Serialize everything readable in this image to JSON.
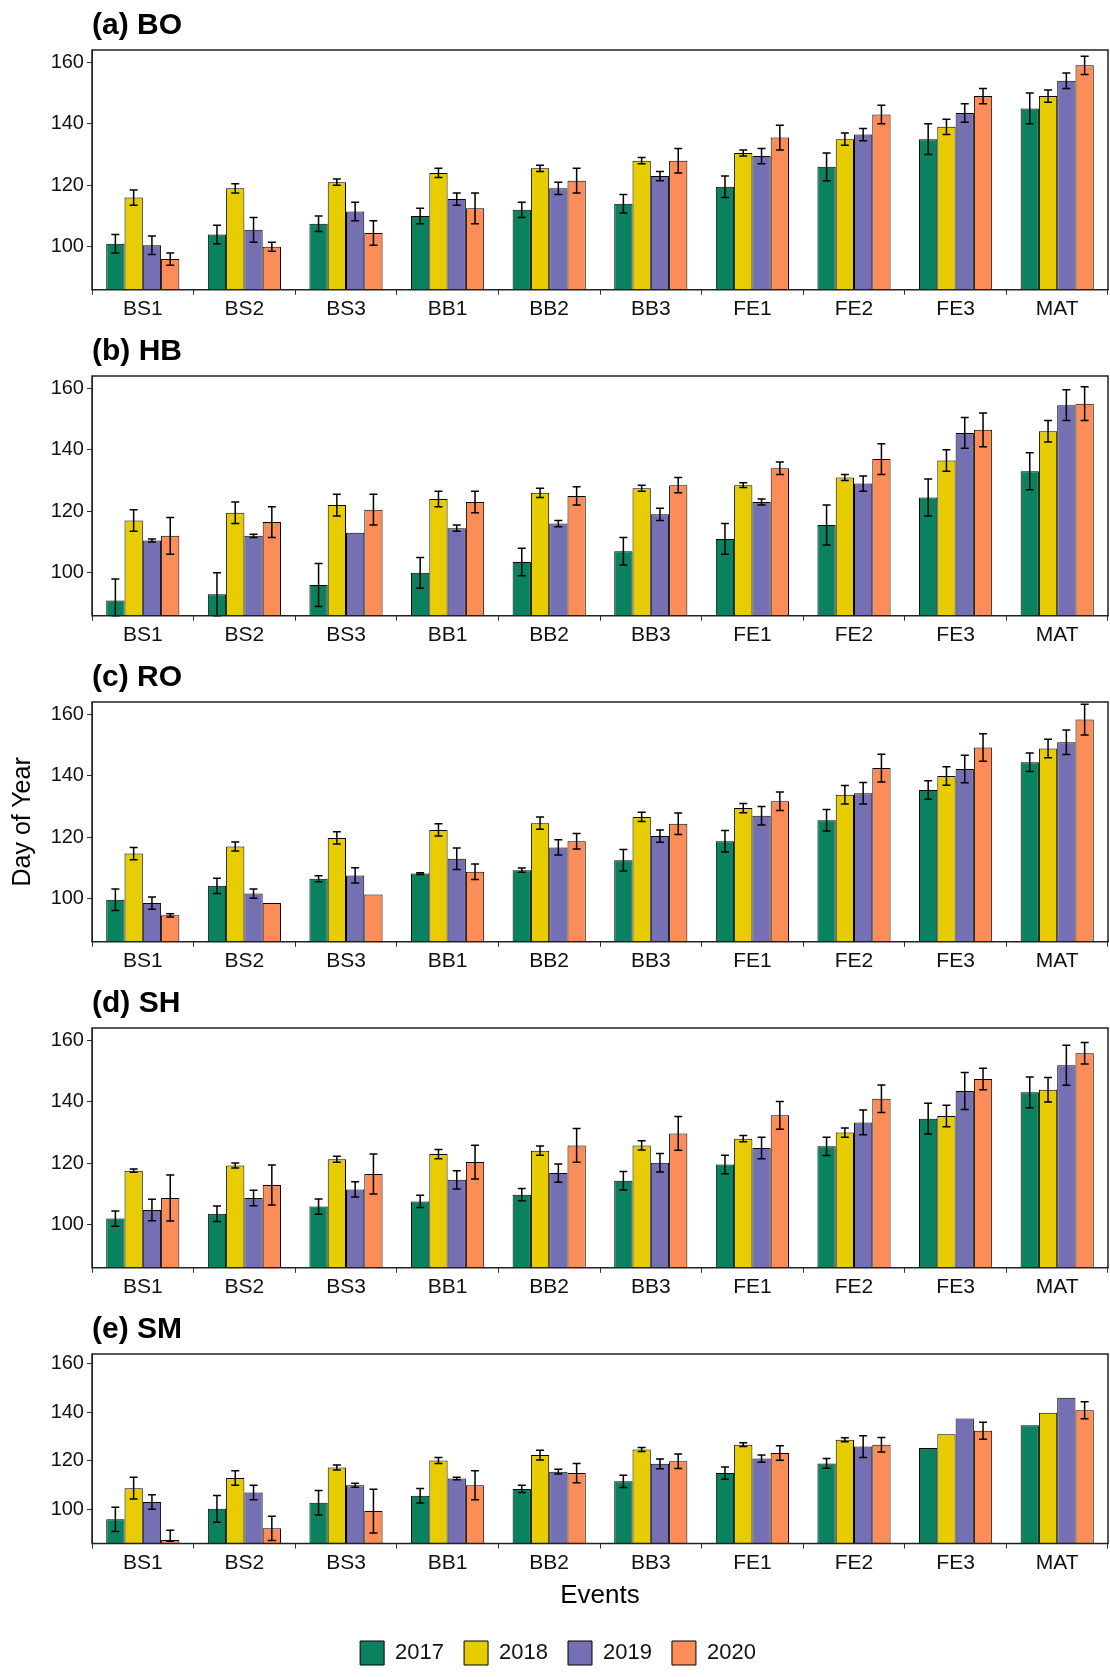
{
  "chart_data": [
    {
      "type": "bar",
      "title": "(a) BO",
      "categories": [
        "BS1",
        "BS2",
        "BS3",
        "BB1",
        "BB2",
        "BB3",
        "FE1",
        "FE2",
        "FE3",
        "MAT"
      ],
      "ylim": [
        86,
        164
      ],
      "yticks": [
        100,
        120,
        140,
        160
      ],
      "series": [
        {
          "color": "#0a8260",
          "values": [
            101,
            104,
            107.5,
            110,
            112,
            114,
            119.5,
            126,
            135,
            145
          ],
          "errors": [
            3,
            3,
            2.5,
            2.5,
            2.5,
            3,
            3.5,
            4.5,
            5,
            5
          ]
        },
        {
          "color": "#e6cc00",
          "values": [
            116,
            119,
            121,
            124,
            125.5,
            128,
            130.5,
            135,
            139,
            149
          ],
          "errors": [
            2.5,
            1.5,
            1,
            1.5,
            1,
            1,
            1,
            2,
            2.5,
            2
          ]
        },
        {
          "color": "#7570b3",
          "values": [
            100.5,
            105.5,
            111.5,
            115.5,
            119,
            123,
            129.5,
            136.5,
            143.5,
            154
          ],
          "errors": [
            3,
            4,
            3,
            2,
            2,
            1.5,
            2.5,
            2,
            3,
            2.5
          ]
        },
        {
          "color": "#fc8d59",
          "values": [
            96,
            100,
            104.5,
            112.5,
            121.5,
            128,
            135.5,
            143,
            149,
            159
          ],
          "errors": [
            2,
            1.5,
            4,
            5,
            4,
            4,
            4,
            3,
            2.5,
            3
          ]
        }
      ]
    },
    {
      "type": "bar",
      "title": "(b) HB",
      "categories": [
        "BS1",
        "BS2",
        "BS3",
        "BB1",
        "BB2",
        "BB3",
        "FE1",
        "FE2",
        "FE3",
        "MAT"
      ],
      "ylim": [
        86,
        164
      ],
      "yticks": [
        100,
        120,
        140,
        160
      ],
      "series": [
        {
          "color": "#0a8260",
          "values": [
            91,
            93,
            96,
            100,
            103.5,
            107,
            111,
            115.5,
            124.5,
            133
          ],
          "errors": [
            [
              86,
              98
            ],
            7,
            7,
            5,
            4.5,
            4.5,
            5,
            6.5,
            6,
            6
          ]
        },
        {
          "color": "#e6cc00",
          "values": [
            117,
            119.5,
            122,
            124,
            126,
            127.5,
            128.5,
            131,
            136.5,
            146
          ],
          "errors": [
            3.5,
            3.5,
            3.5,
            2.5,
            1.5,
            1,
            0.8,
            1,
            3.5,
            3.5
          ]
        },
        {
          "color": "#7570b3",
          "values": [
            110.5,
            112,
            113,
            114.5,
            116,
            119,
            123,
            129,
            145.5,
            154.5
          ],
          "errors": [
            0.5,
            0.5,
            null,
            1,
            1,
            2,
            1,
            2.5,
            5,
            5
          ]
        },
        {
          "color": "#fc8d59",
          "values": [
            112,
            116.5,
            120.5,
            123,
            125,
            128.5,
            134,
            137,
            146.5,
            155
          ],
          "errors": [
            6,
            5,
            5,
            3.5,
            3,
            2.5,
            2,
            5,
            5.5,
            5.5
          ]
        }
      ]
    },
    {
      "type": "bar",
      "title": "(c) RO",
      "ylabel": "Day of Year",
      "categories": [
        "BS1",
        "BS2",
        "BS3",
        "BB1",
        "BB2",
        "BB3",
        "FE1",
        "FE2",
        "FE3",
        "MAT"
      ],
      "ylim": [
        86,
        164
      ],
      "yticks": [
        100,
        120,
        140,
        160
      ],
      "series": [
        {
          "color": "#0a8260",
          "values": [
            99.7,
            104.2,
            106.5,
            108.2,
            109.3,
            112.5,
            118.7,
            125.5,
            135.4,
            144.4
          ],
          "errors": [
            3.5,
            2.5,
            1,
            0.3,
            0.7,
            3.5,
            3.5,
            3.5,
            3,
            3
          ]
        },
        {
          "color": "#e6cc00",
          "values": [
            114.7,
            117,
            119.8,
            122.4,
            124.6,
            126.6,
            129.5,
            133.8,
            139.9,
            148.9
          ],
          "errors": [
            2,
            1.5,
            2,
            2,
            2,
            1.5,
            1.5,
            3,
            3,
            3
          ]
        },
        {
          "color": "#7570b3",
          "values": [
            98.6,
            101.7,
            107.6,
            113,
            116.7,
            120.4,
            127,
            134.3,
            142.2,
            150.9
          ],
          "errors": [
            2,
            1.5,
            2.5,
            3.5,
            2.5,
            2,
            3,
            3.5,
            4.5,
            4
          ]
        },
        {
          "color": "#fc8d59",
          "values": [
            94.6,
            98.6,
            101.4,
            108.8,
            118.7,
            124.4,
            131.7,
            142.5,
            149.2,
            158.3
          ],
          "errors": [
            0.5,
            null,
            null,
            2.5,
            2.5,
            3.5,
            3,
            4.5,
            4.5,
            5
          ]
        }
      ]
    },
    {
      "type": "bar",
      "title": "(d) SH",
      "categories": [
        "BS1",
        "BS2",
        "BS3",
        "BB1",
        "BB2",
        "BB3",
        "FE1",
        "FE2",
        "FE3",
        "MAT"
      ],
      "ylim": [
        86,
        164
      ],
      "yticks": [
        100,
        120,
        140,
        160
      ],
      "series": [
        {
          "color": "#0a8260",
          "values": [
            102,
            103.6,
            105.9,
            107.6,
            109.8,
            114.3,
            119.6,
            125.5,
            134.5,
            143.1
          ],
          "errors": [
            2.5,
            2.5,
            2.5,
            2,
            2,
            3,
            3,
            3,
            5,
            5
          ]
        },
        {
          "color": "#e6cc00",
          "values": [
            117.6,
            119.3,
            121.3,
            123,
            124.1,
            125.8,
            128,
            130,
            135.4,
            143.9
          ],
          "errors": [
            0.5,
            0.8,
            1,
            1.5,
            1.5,
            1.5,
            1,
            1.5,
            3.5,
            4
          ]
        },
        {
          "color": "#7570b3",
          "values": [
            104.8,
            108.7,
            111.5,
            114.6,
            116.8,
            120.2,
            125,
            133.3,
            143.5,
            151.9
          ],
          "errors": [
            3.5,
            2.5,
            2.5,
            3,
            3,
            3,
            3.5,
            4,
            6,
            6.5
          ]
        },
        {
          "color": "#fc8d59",
          "values": [
            108.7,
            112.9,
            116.5,
            120.4,
            125.8,
            129.7,
            135.6,
            141,
            147.4,
            155.8
          ],
          "errors": [
            7.5,
            6.5,
            6.5,
            5.5,
            5.5,
            5.5,
            4.5,
            4.5,
            3.5,
            3.5
          ]
        }
      ]
    },
    {
      "type": "bar",
      "title": "(e) SM",
      "xlabel": "Events",
      "legend": "bottom",
      "categories": [
        "BS1",
        "BS2",
        "BS3",
        "BB1",
        "BB2",
        "BB3",
        "FE1",
        "FE2",
        "FE3",
        "MAT"
      ],
      "ylim": [
        86,
        164
      ],
      "yticks": [
        100,
        120,
        140,
        160
      ],
      "series": [
        {
          "name": "2017",
          "color": "#0a8260",
          "values": [
            96,
            100.3,
            102.8,
            105.7,
            108.5,
            111.6,
            115,
            119,
            125.3,
            134.7
          ],
          "errors": [
            5,
            5.5,
            5,
            3,
            1.5,
            2.5,
            2.5,
            2,
            null,
            null
          ]
        },
        {
          "name": "2018",
          "color": "#e6cc00",
          "values": [
            108.8,
            113,
            117.3,
            120.2,
            122.4,
            124.7,
            126.7,
            128.7,
            131,
            139.8
          ],
          "errors": [
            4.5,
            3,
            1,
            1.2,
            2,
            0.8,
            0.8,
            0.8,
            null,
            null
          ]
        },
        {
          "name": "2019",
          "color": "#7570b3",
          "values": [
            103.1,
            107,
            110,
            112.8,
            115.6,
            118.8,
            121,
            125.9,
            137.5,
            146
          ],
          "errors": [
            3,
            3,
            0.8,
            0.5,
            1,
            2,
            1.5,
            4.5,
            null,
            null
          ]
        },
        {
          "name": "2020",
          "color": "#fc8d59",
          "values": [
            87.5,
            92.3,
            99.4,
            110,
            115,
            119.9,
            123.3,
            126.7,
            132.4,
            140.9
          ],
          "errors": [
            [
              87,
              91.5
            ],
            5,
            9,
            6,
            4,
            3,
            3,
            3,
            3.5,
            3.5
          ]
        }
      ]
    }
  ]
}
